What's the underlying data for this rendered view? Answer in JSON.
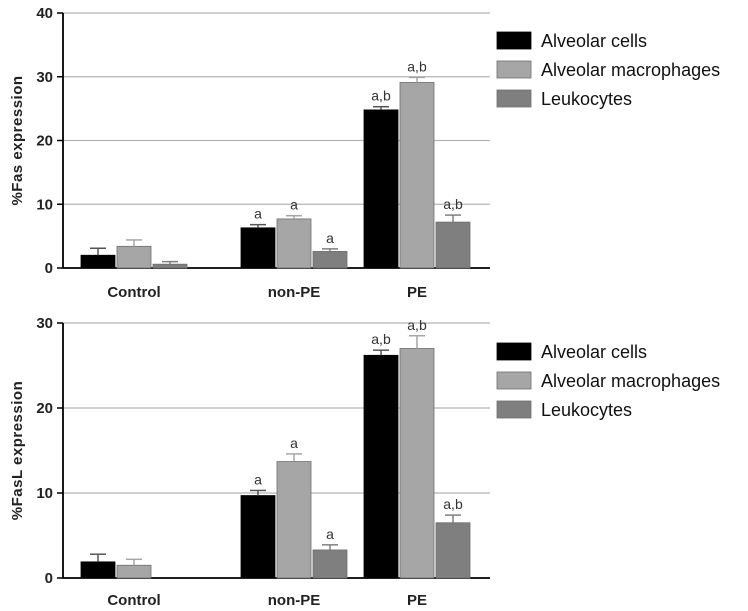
{
  "chart_data": [
    {
      "type": "bar",
      "title": "",
      "xlabel": "",
      "ylabel": "%Fas expression",
      "ylim": [
        0,
        40
      ],
      "yticks": [
        0,
        10,
        20,
        30,
        40
      ],
      "grid": true,
      "legend_position": "top-right",
      "categories": [
        "Control",
        "non-PE",
        "PE"
      ],
      "series": [
        {
          "name": "Alveolar cells",
          "color": "#000000",
          "values": [
            2.0,
            6.3,
            24.8
          ],
          "errors": [
            1.1,
            0.5,
            0.5
          ],
          "annotations": [
            "",
            "a",
            "a,b"
          ]
        },
        {
          "name": "Alveolar macrophages",
          "color": "#a6a6a6",
          "values": [
            3.4,
            7.7,
            29.1
          ],
          "errors": [
            1.0,
            0.5,
            0.8
          ],
          "annotations": [
            "",
            "a",
            "a,b"
          ]
        },
        {
          "name": "Leukocytes",
          "color": "#7f7f7f",
          "values": [
            0.6,
            2.6,
            7.2
          ],
          "errors": [
            0.4,
            0.4,
            1.1
          ],
          "annotations": [
            "",
            "a",
            "a,b"
          ]
        }
      ]
    },
    {
      "type": "bar",
      "title": "",
      "xlabel": "",
      "ylabel": "%FasL expression",
      "ylim": [
        0,
        30
      ],
      "yticks": [
        0,
        10,
        20,
        30
      ],
      "grid": true,
      "legend_position": "top-right",
      "categories": [
        "Control",
        "non-PE",
        "PE"
      ],
      "series": [
        {
          "name": "Alveolar cells",
          "color": "#000000",
          "values": [
            1.9,
            9.7,
            26.2
          ],
          "errors": [
            0.9,
            0.6,
            0.6
          ],
          "annotations": [
            "",
            "a",
            "a,b"
          ]
        },
        {
          "name": "Alveolar macrophages",
          "color": "#a6a6a6",
          "values": [
            1.5,
            13.7,
            27.0
          ],
          "errors": [
            0.7,
            0.9,
            1.5
          ],
          "annotations": [
            "",
            "a",
            "a,b"
          ]
        },
        {
          "name": "Leukocytes",
          "color": "#7f7f7f",
          "values": [
            0.0,
            3.3,
            6.5
          ],
          "errors": [
            0.0,
            0.6,
            0.9
          ],
          "annotations": [
            "",
            "a",
            "a,b"
          ]
        }
      ]
    }
  ]
}
